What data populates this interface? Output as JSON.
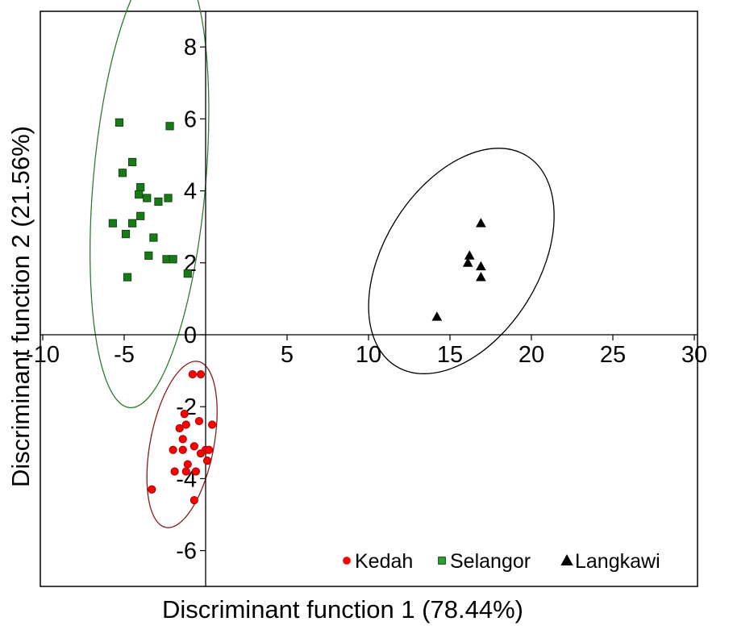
{
  "chart_data": {
    "type": "scatter",
    "xlabel": "Discriminant function 1 (78.44%)",
    "ylabel": "Discriminant function 2 (21.56%)",
    "xlim": [
      -10,
      30
    ],
    "ylim": [
      -7,
      9
    ],
    "x_ticks": [
      -10,
      -5,
      5,
      10,
      15,
      20,
      25,
      30
    ],
    "y_ticks": [
      8,
      6,
      4,
      2,
      0,
      -2,
      -4,
      -6
    ],
    "grid": false,
    "legend_position": "bottom-right",
    "series": [
      {
        "name": "Kedah",
        "marker": "circle",
        "color": "#ff0000",
        "stroke": "#a00000",
        "ellipse_color": "#8b1a1a",
        "points": [
          [
            -0.8,
            -1.1
          ],
          [
            -0.3,
            -1.1
          ],
          [
            -1.3,
            -2.2
          ],
          [
            -0.4,
            -2.4
          ],
          [
            0.4,
            -2.5
          ],
          [
            -1.2,
            -2.5
          ],
          [
            -1.6,
            -2.6
          ],
          [
            -1.4,
            -2.9
          ],
          [
            -0.7,
            -3.1
          ],
          [
            -2.0,
            -3.2
          ],
          [
            -1.4,
            -3.2
          ],
          [
            0.0,
            -3.2
          ],
          [
            0.2,
            -3.2
          ],
          [
            -0.3,
            -3.3
          ],
          [
            0.1,
            -3.5
          ],
          [
            -1.1,
            -3.6
          ],
          [
            -1.9,
            -3.8
          ],
          [
            -1.2,
            -3.8
          ],
          [
            -0.6,
            -3.8
          ],
          [
            -3.3,
            -4.3
          ],
          [
            -0.7,
            -4.6
          ]
        ],
        "ellipse": {
          "center": [
            -1.45,
            -3.05
          ],
          "rx": 1.95,
          "ry": 2.35,
          "angle": 11
        }
      },
      {
        "name": "Selangor",
        "marker": "square",
        "color": "#1a7a1a",
        "stroke": "#0a4a0a",
        "ellipse_color": "#2e7d2e",
        "legend_color": "#2ca02c",
        "points": [
          [
            -5.3,
            5.9
          ],
          [
            -2.2,
            5.8
          ],
          [
            -4.5,
            4.8
          ],
          [
            -5.1,
            4.5
          ],
          [
            -4.0,
            4.1
          ],
          [
            -4.1,
            3.9
          ],
          [
            -3.6,
            3.8
          ],
          [
            -2.3,
            3.8
          ],
          [
            -2.9,
            3.7
          ],
          [
            -4.0,
            3.3
          ],
          [
            -5.7,
            3.1
          ],
          [
            -4.5,
            3.1
          ],
          [
            -4.9,
            2.8
          ],
          [
            -3.2,
            2.7
          ],
          [
            -3.5,
            2.2
          ],
          [
            -2.4,
            2.1
          ],
          [
            -2.0,
            2.1
          ],
          [
            -1.1,
            1.7
          ],
          [
            -4.8,
            1.6
          ]
        ],
        "ellipse": {
          "center": [
            -3.45,
            4.25
          ],
          "rx": 3.45,
          "ry": 6.3,
          "angle": 5
        }
      },
      {
        "name": "Langkawi",
        "marker": "triangle",
        "color": "#000000",
        "stroke": "#000000",
        "ellipse_color": "#000000",
        "points": [
          [
            16.9,
            3.1
          ],
          [
            16.2,
            2.2
          ],
          [
            16.1,
            2.0
          ],
          [
            16.9,
            1.9
          ],
          [
            16.9,
            1.6
          ],
          [
            14.2,
            0.5
          ]
        ],
        "ellipse": {
          "center": [
            15.7,
            2.05
          ],
          "rx": 7.6,
          "ry": 2.15,
          "angle": -58
        }
      }
    ]
  }
}
